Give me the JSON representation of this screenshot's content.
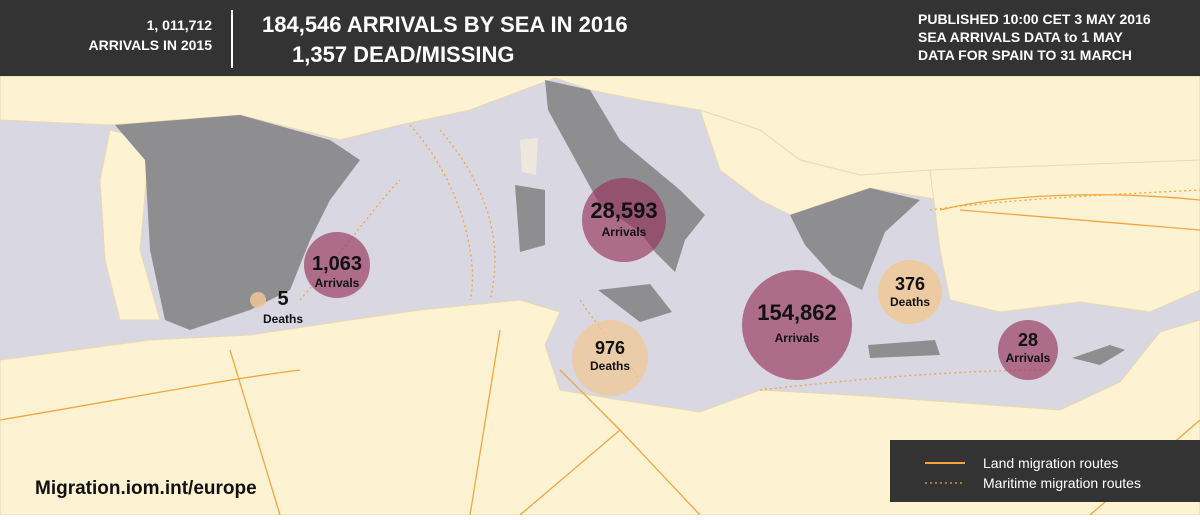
{
  "header": {
    "left": [
      "1, 011,712",
      "ARRIVALS IN 2015"
    ],
    "center": [
      "184,546 ARRIVALS BY SEA IN 2016",
      "1,357 DEAD/MISSING"
    ],
    "right": [
      "PUBLISHED 10:00 CET 3 MAY 2016",
      "SEA ARRIVALS DATA to 1 MAY",
      "DATA FOR SPAIN TO 31 MARCH"
    ]
  },
  "bubbles": [
    {
      "label": "1,063",
      "caption": "Arrivals"
    },
    {
      "label": "5",
      "caption": "Deaths"
    },
    {
      "label": "28,593",
      "caption": "Arrivals"
    },
    {
      "label": "976",
      "caption": "Deaths"
    },
    {
      "label": "154,862",
      "caption": "Arrivals"
    },
    {
      "label": "376",
      "caption": "Deaths"
    },
    {
      "label": "28",
      "caption": "Arrivals"
    }
  ],
  "legend": [
    "Land migration routes",
    "Maritime migration routes"
  ],
  "footer": "Migration.iom.int/europe"
}
